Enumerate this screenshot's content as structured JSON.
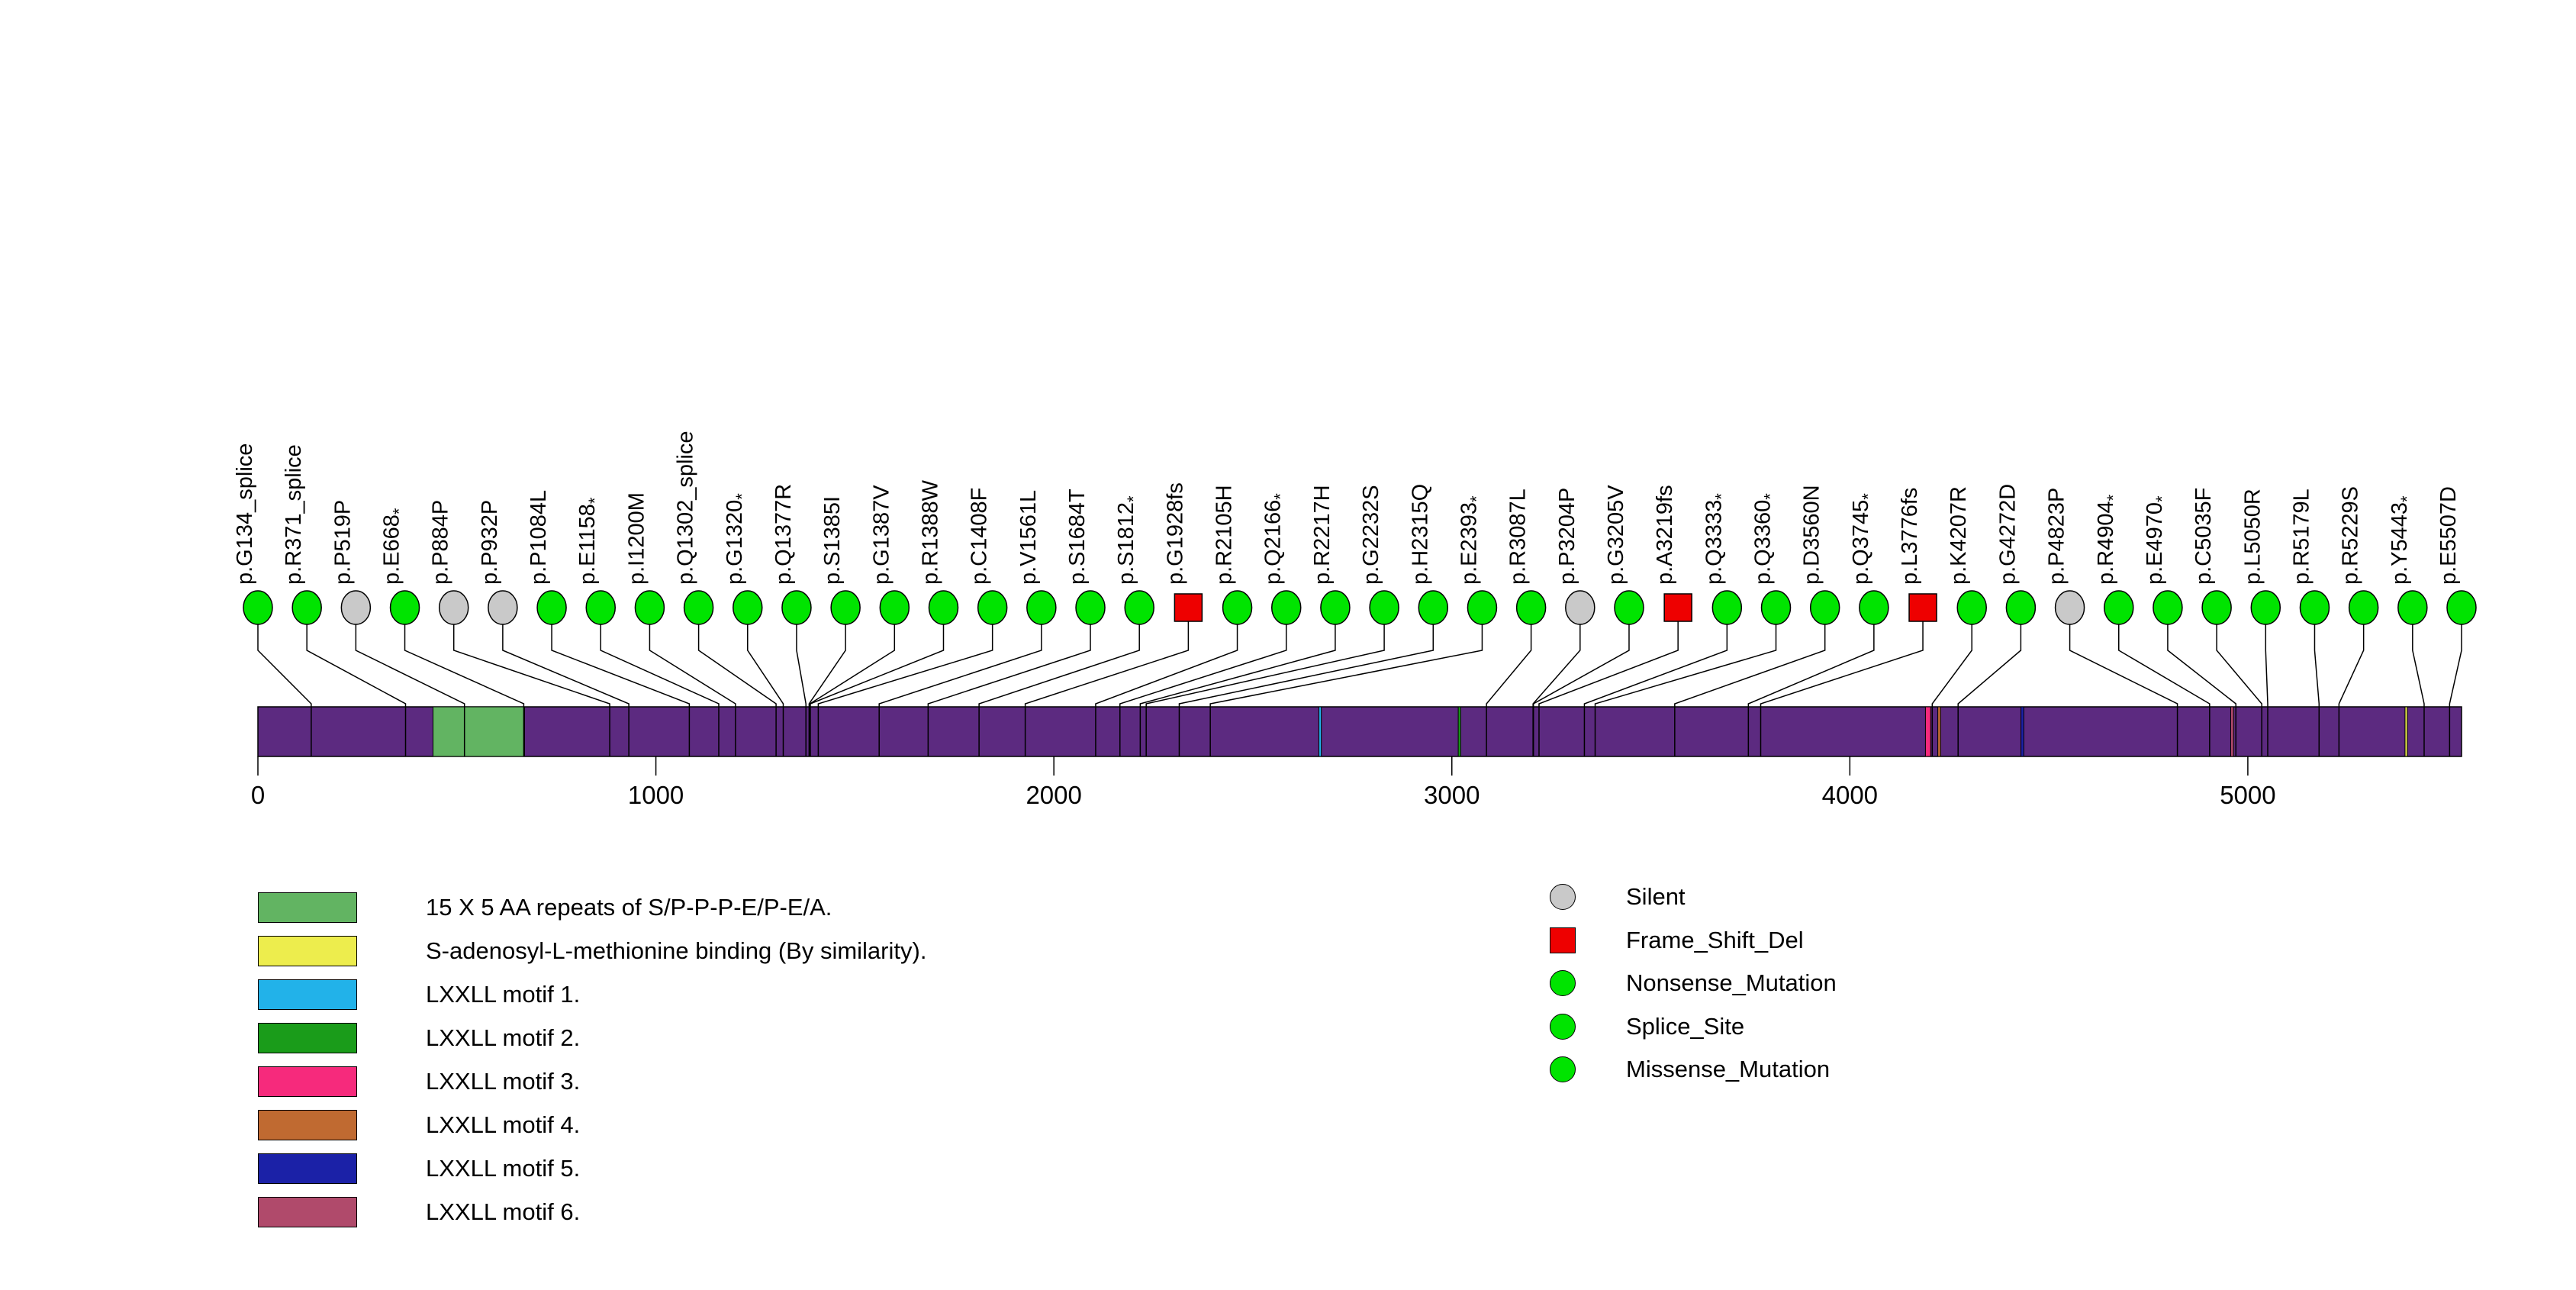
{
  "chart_data": {
    "type": "lollipop",
    "title": "",
    "xlabel": "",
    "protein_length": 5537,
    "axis_ticks": [
      0,
      1000,
      2000,
      3000,
      4000,
      5000
    ],
    "grid": false,
    "bar_color": "#5c2a80",
    "type_styles": {
      "Silent": {
        "color": "#c9c9c9",
        "shape": "circle"
      },
      "Frame_Shift_Del": {
        "color": "#ee0000",
        "shape": "square"
      },
      "Nonsense_Mutation": {
        "color": "#00e400",
        "shape": "circle"
      },
      "Splice_Site": {
        "color": "#00e400",
        "shape": "circle"
      },
      "Missense_Mutation": {
        "color": "#00e400",
        "shape": "circle"
      }
    },
    "mutations": [
      {
        "label": "p.G134_splice",
        "position": 134,
        "type": "Splice_Site"
      },
      {
        "label": "p.R371_splice",
        "position": 371,
        "type": "Splice_Site"
      },
      {
        "label": "p.P519P",
        "position": 519,
        "type": "Silent"
      },
      {
        "label": "p.E668*",
        "position": 668,
        "type": "Nonsense_Mutation"
      },
      {
        "label": "p.P884P",
        "position": 884,
        "type": "Silent"
      },
      {
        "label": "p.P932P",
        "position": 932,
        "type": "Silent"
      },
      {
        "label": "p.P1084L",
        "position": 1084,
        "type": "Missense_Mutation"
      },
      {
        "label": "p.E1158*",
        "position": 1158,
        "type": "Nonsense_Mutation"
      },
      {
        "label": "p.I1200M",
        "position": 1200,
        "type": "Missense_Mutation"
      },
      {
        "label": "p.Q1302_splice",
        "position": 1302,
        "type": "Splice_Site"
      },
      {
        "label": "p.G1320*",
        "position": 1320,
        "type": "Nonsense_Mutation"
      },
      {
        "label": "p.Q1377R",
        "position": 1377,
        "type": "Missense_Mutation"
      },
      {
        "label": "p.S1385I",
        "position": 1385,
        "type": "Missense_Mutation"
      },
      {
        "label": "p.G1387V",
        "position": 1387,
        "type": "Missense_Mutation"
      },
      {
        "label": "p.R1388W",
        "position": 1388,
        "type": "Missense_Mutation"
      },
      {
        "label": "p.C1408F",
        "position": 1408,
        "type": "Missense_Mutation"
      },
      {
        "label": "p.V1561L",
        "position": 1561,
        "type": "Missense_Mutation"
      },
      {
        "label": "p.S1684T",
        "position": 1684,
        "type": "Missense_Mutation"
      },
      {
        "label": "p.S1812*",
        "position": 1812,
        "type": "Nonsense_Mutation"
      },
      {
        "label": "p.G1928fs",
        "position": 1928,
        "type": "Frame_Shift_Del"
      },
      {
        "label": "p.R2105H",
        "position": 2105,
        "type": "Missense_Mutation"
      },
      {
        "label": "p.Q2166*",
        "position": 2166,
        "type": "Nonsense_Mutation"
      },
      {
        "label": "p.R2217H",
        "position": 2217,
        "type": "Missense_Mutation"
      },
      {
        "label": "p.G2232S",
        "position": 2232,
        "type": "Missense_Mutation"
      },
      {
        "label": "p.H2315Q",
        "position": 2315,
        "type": "Missense_Mutation"
      },
      {
        "label": "p.E2393*",
        "position": 2393,
        "type": "Nonsense_Mutation"
      },
      {
        "label": "p.R3087L",
        "position": 3087,
        "type": "Missense_Mutation"
      },
      {
        "label": "p.P3204P",
        "position": 3204,
        "type": "Silent"
      },
      {
        "label": "p.G3205V",
        "position": 3205,
        "type": "Missense_Mutation"
      },
      {
        "label": "p.A3219fs",
        "position": 3219,
        "type": "Frame_Shift_Del"
      },
      {
        "label": "p.Q3333*",
        "position": 3333,
        "type": "Nonsense_Mutation"
      },
      {
        "label": "p.Q3360*",
        "position": 3360,
        "type": "Nonsense_Mutation"
      },
      {
        "label": "p.D3560N",
        "position": 3560,
        "type": "Missense_Mutation"
      },
      {
        "label": "p.Q3745*",
        "position": 3745,
        "type": "Nonsense_Mutation"
      },
      {
        "label": "p.L3776fs",
        "position": 3776,
        "type": "Frame_Shift_Del"
      },
      {
        "label": "p.K4207R",
        "position": 4207,
        "type": "Missense_Mutation"
      },
      {
        "label": "p.G4272D",
        "position": 4272,
        "type": "Missense_Mutation"
      },
      {
        "label": "p.P4823P",
        "position": 4823,
        "type": "Silent"
      },
      {
        "label": "p.R4904*",
        "position": 4904,
        "type": "Nonsense_Mutation"
      },
      {
        "label": "p.E4970*",
        "position": 4970,
        "type": "Nonsense_Mutation"
      },
      {
        "label": "p.C5035F",
        "position": 5035,
        "type": "Missense_Mutation"
      },
      {
        "label": "p.L5050R",
        "position": 5050,
        "type": "Missense_Mutation"
      },
      {
        "label": "p.R5179L",
        "position": 5179,
        "type": "Missense_Mutation"
      },
      {
        "label": "p.R5229S",
        "position": 5229,
        "type": "Missense_Mutation"
      },
      {
        "label": "p.Y5443*",
        "position": 5443,
        "type": "Nonsense_Mutation"
      },
      {
        "label": "p.E5507D",
        "position": 5507,
        "type": "Missense_Mutation"
      }
    ],
    "domains": [
      {
        "name": "15 X 5 AA repeats of S/P-P-P-E/P-E/A.",
        "color": "#62b462",
        "start": 440,
        "end": 670
      },
      {
        "name": "S-adenosyl-L-methionine binding (By similarity).",
        "color": "#eded4d",
        "start": 5395,
        "end": 5400
      },
      {
        "name": "LXXLL motif 1.",
        "color": "#22b2e9",
        "start": 2666,
        "end": 2672
      },
      {
        "name": "LXXLL motif 2.",
        "color": "#1a9c1a",
        "start": 3016,
        "end": 3022
      },
      {
        "name": "LXXLL motif 3.",
        "color": "#f62a7c",
        "start": 4190,
        "end": 4203
      },
      {
        "name": "LXXLL motif 4.",
        "color": "#c06a31",
        "start": 4221,
        "end": 4228
      },
      {
        "name": "LXXLL motif 5.",
        "color": "#1b21a7",
        "start": 4430,
        "end": 4437
      },
      {
        "name": "LXXLL motif 6.",
        "color": "#b04a6b",
        "start": 4957,
        "end": 4964
      }
    ],
    "legend_position": {
      "domains": "bottom-left",
      "mutation_types": "bottom-right"
    }
  },
  "legend_domains": {
    "items": [
      {
        "label": "15 X 5 AA repeats of S/P-P-P-E/P-E/A.",
        "color": "#62b462"
      },
      {
        "label": "S-adenosyl-L-methionine binding (By similarity).",
        "color": "#eded4d"
      },
      {
        "label": "LXXLL motif 1.",
        "color": "#22b2e9"
      },
      {
        "label": "LXXLL motif 2.",
        "color": "#1a9c1a"
      },
      {
        "label": "LXXLL motif 3.",
        "color": "#f62a7c"
      },
      {
        "label": "LXXLL motif 4.",
        "color": "#c06a31"
      },
      {
        "label": "LXXLL motif 5.",
        "color": "#1b21a7"
      },
      {
        "label": "LXXLL motif 6.",
        "color": "#b04a6b"
      }
    ]
  },
  "legend_mutation_types": {
    "items": [
      {
        "label": "Silent",
        "color": "#c9c9c9",
        "shape": "circle"
      },
      {
        "label": "Frame_Shift_Del",
        "color": "#ee0000",
        "shape": "square"
      },
      {
        "label": "Nonsense_Mutation",
        "color": "#00e400",
        "shape": "circle"
      },
      {
        "label": "Splice_Site",
        "color": "#00e400",
        "shape": "circle"
      },
      {
        "label": "Missense_Mutation",
        "color": "#00e400",
        "shape": "circle"
      }
    ]
  }
}
